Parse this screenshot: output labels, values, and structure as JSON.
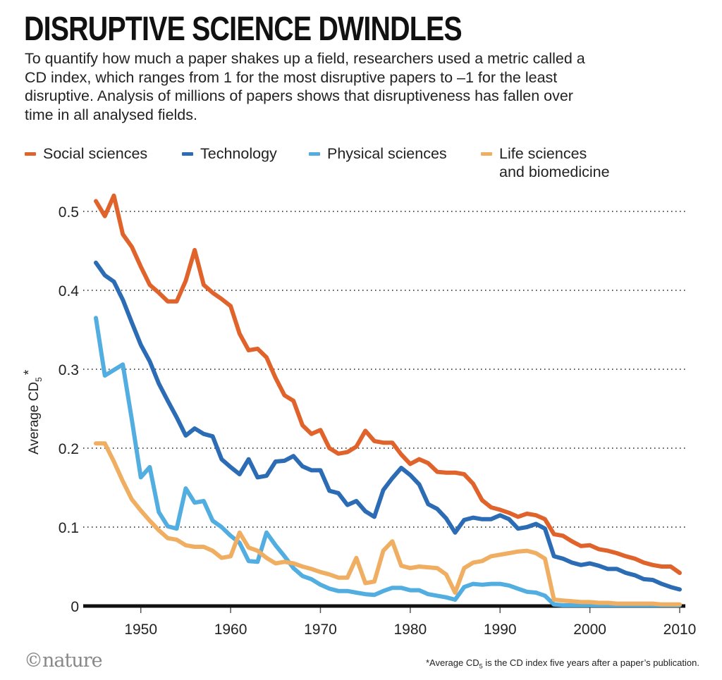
{
  "title": "DISRUPTIVE SCIENCE DWINDLES",
  "subtitle": "To quantify how much a paper shakes up a field, researchers used a metric called a CD index, which ranges from 1 for the most disruptive papers to –1 for the least disruptive. Analysis of millions of papers shows that disruptiveness has fallen over time in all analysed fields.",
  "logo": "©nature",
  "footnote": {
    "prefix": "*Average CD",
    "sub": "5",
    "suffix": " is the CD index five years after a paper’s publication."
  },
  "chart_data": {
    "type": "line",
    "ylabel": {
      "main": "Average CD",
      "sub": "5",
      "star": "*"
    },
    "xlim": [
      1945,
      2010
    ],
    "ylim": [
      0,
      0.5
    ],
    "xticks": [
      1950,
      1960,
      1970,
      1980,
      1990,
      2000,
      2010
    ],
    "xtick_labels": [
      "1950",
      "1960",
      "1970",
      "1980",
      "1990",
      "2000",
      "2010"
    ],
    "yticks": [
      0,
      0.1,
      0.2,
      0.3,
      0.4,
      0.5
    ],
    "ytick_labels": [
      "0",
      "0.1",
      "0.2",
      "0.3",
      "0.4",
      "0.5"
    ],
    "grid": "horizontal dotted",
    "legend": "top",
    "x": [
      1945,
      1946,
      1947,
      1948,
      1949,
      1950,
      1951,
      1952,
      1953,
      1954,
      1955,
      1956,
      1957,
      1958,
      1959,
      1960,
      1961,
      1962,
      1963,
      1964,
      1965,
      1966,
      1967,
      1968,
      1969,
      1970,
      1971,
      1972,
      1973,
      1974,
      1975,
      1976,
      1977,
      1978,
      1979,
      1980,
      1981,
      1982,
      1983,
      1984,
      1985,
      1986,
      1987,
      1988,
      1989,
      1990,
      1991,
      1992,
      1993,
      1994,
      1995,
      1996,
      1997,
      1998,
      1999,
      2000,
      2001,
      2002,
      2003,
      2004,
      2005,
      2006,
      2007,
      2008,
      2009,
      2010
    ],
    "series": [
      {
        "name": "Social sciences",
        "color": "#e0632c",
        "values": [
          0.513,
          0.494,
          0.52,
          0.471,
          0.455,
          0.43,
          0.407,
          0.397,
          0.386,
          0.386,
          0.412,
          0.451,
          0.407,
          0.397,
          0.389,
          0.38,
          0.345,
          0.324,
          0.326,
          0.315,
          0.289,
          0.267,
          0.26,
          0.229,
          0.218,
          0.223,
          0.2,
          0.193,
          0.195,
          0.202,
          0.222,
          0.209,
          0.207,
          0.207,
          0.192,
          0.18,
          0.186,
          0.181,
          0.17,
          0.169,
          0.169,
          0.167,
          0.155,
          0.134,
          0.125,
          0.122,
          0.118,
          0.113,
          0.117,
          0.115,
          0.11,
          0.091,
          0.089,
          0.082,
          0.076,
          0.077,
          0.072,
          0.07,
          0.067,
          0.063,
          0.06,
          0.055,
          0.052,
          0.05,
          0.05,
          0.042
        ]
      },
      {
        "name": "Technology",
        "color": "#2b6cb5",
        "values": [
          0.435,
          0.419,
          0.411,
          0.388,
          0.359,
          0.331,
          0.31,
          0.282,
          0.26,
          0.239,
          0.216,
          0.225,
          0.218,
          0.215,
          0.186,
          0.176,
          0.167,
          0.186,
          0.163,
          0.165,
          0.183,
          0.184,
          0.19,
          0.177,
          0.172,
          0.172,
          0.146,
          0.143,
          0.128,
          0.133,
          0.12,
          0.113,
          0.147,
          0.162,
          0.175,
          0.166,
          0.154,
          0.129,
          0.123,
          0.111,
          0.093,
          0.109,
          0.112,
          0.11,
          0.11,
          0.115,
          0.11,
          0.098,
          0.1,
          0.104,
          0.098,
          0.063,
          0.06,
          0.055,
          0.052,
          0.054,
          0.051,
          0.047,
          0.047,
          0.042,
          0.039,
          0.034,
          0.033,
          0.028,
          0.024,
          0.021
        ]
      },
      {
        "name": "Physical sciences",
        "color": "#52aee0",
        "values": [
          0.365,
          0.292,
          0.299,
          0.306,
          0.236,
          0.163,
          0.176,
          0.119,
          0.101,
          0.098,
          0.149,
          0.131,
          0.133,
          0.108,
          0.1,
          0.089,
          0.08,
          0.057,
          0.056,
          0.093,
          0.077,
          0.063,
          0.048,
          0.038,
          0.034,
          0.027,
          0.022,
          0.019,
          0.019,
          0.017,
          0.015,
          0.014,
          0.019,
          0.023,
          0.023,
          0.02,
          0.02,
          0.015,
          0.013,
          0.011,
          0.008,
          0.024,
          0.028,
          0.027,
          0.028,
          0.028,
          0.026,
          0.022,
          0.018,
          0.017,
          0.013,
          0.002,
          0.001,
          0.001,
          0.001,
          0.001,
          0.001,
          0.001,
          0.001,
          0.001,
          0.001,
          0.001,
          0.001,
          0.001,
          0.001,
          0.001
        ]
      },
      {
        "name": "Life sciences and biomedicine",
        "name_lines": [
          "Life sciences",
          "and biomedicine"
        ],
        "color": "#efae62",
        "values": [
          0.206,
          0.206,
          0.183,
          0.158,
          0.135,
          0.121,
          0.108,
          0.096,
          0.086,
          0.084,
          0.077,
          0.075,
          0.075,
          0.07,
          0.061,
          0.063,
          0.093,
          0.074,
          0.07,
          0.061,
          0.054,
          0.056,
          0.054,
          0.05,
          0.047,
          0.043,
          0.04,
          0.036,
          0.036,
          0.061,
          0.029,
          0.031,
          0.07,
          0.082,
          0.051,
          0.048,
          0.05,
          0.049,
          0.048,
          0.04,
          0.017,
          0.048,
          0.055,
          0.057,
          0.063,
          0.065,
          0.067,
          0.069,
          0.07,
          0.067,
          0.06,
          0.008,
          0.007,
          0.006,
          0.005,
          0.005,
          0.004,
          0.004,
          0.003,
          0.003,
          0.003,
          0.003,
          0.003,
          0.002,
          0.002,
          0.002
        ]
      }
    ]
  }
}
